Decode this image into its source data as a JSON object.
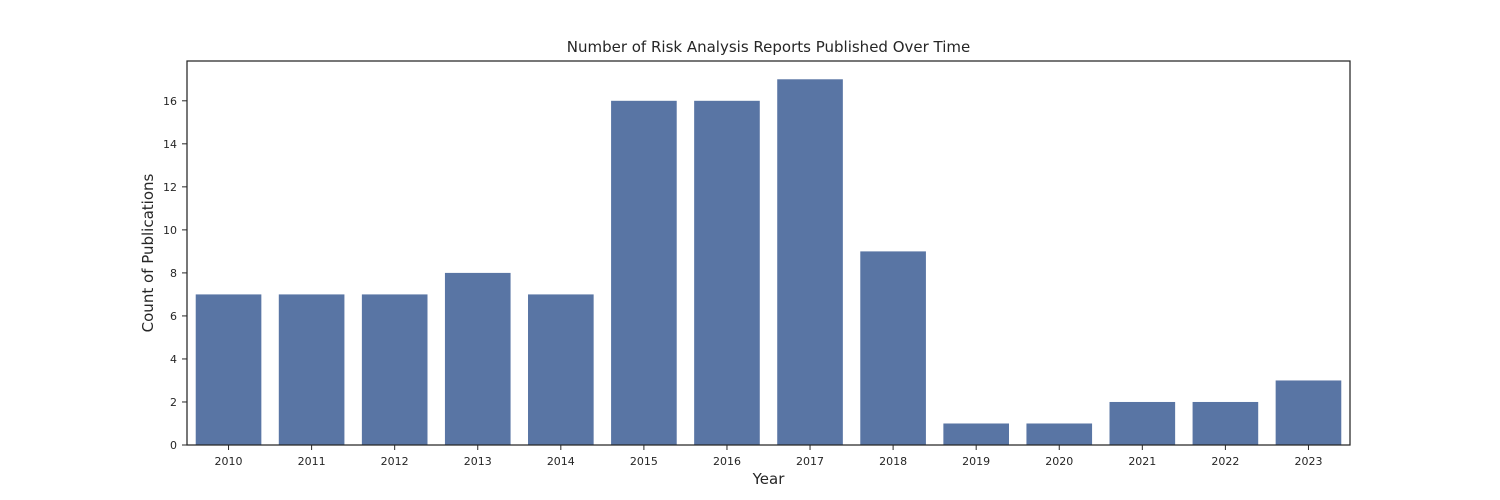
{
  "chart_data": {
    "type": "bar",
    "title": "Number of Risk Analysis Reports Published Over Time",
    "xlabel": "Year",
    "ylabel": "Count of Publications",
    "categories": [
      "2010",
      "2011",
      "2012",
      "2013",
      "2014",
      "2015",
      "2016",
      "2017",
      "2018",
      "2019",
      "2020",
      "2021",
      "2022",
      "2023"
    ],
    "values": [
      7,
      7,
      7,
      8,
      7,
      16,
      16,
      17,
      9,
      1,
      1,
      2,
      2,
      3
    ],
    "ylim": [
      0,
      17.85
    ],
    "yticks": [
      0,
      2,
      4,
      6,
      8,
      10,
      12,
      14,
      16
    ],
    "grid": false,
    "legend": "none",
    "bar_color": "#5975a4",
    "axis_color": "#262626"
  }
}
